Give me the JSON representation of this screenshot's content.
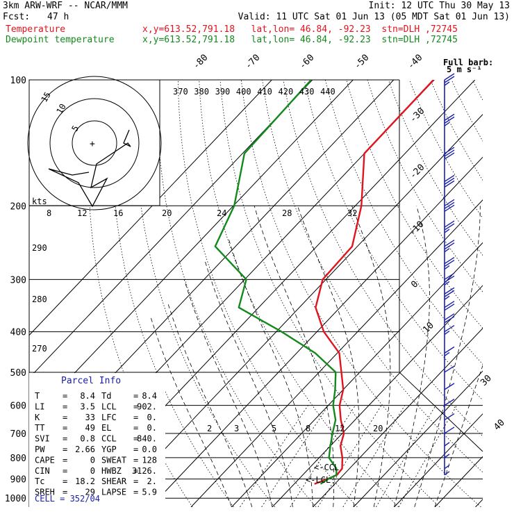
{
  "header": {
    "model": "3km ARW-WRF -- NCAR/MMM",
    "init": "Init: 12 UTC Thu 30 May 13",
    "fcst_label": "Fcst:",
    "fcst_value": "47 h",
    "valid": "Valid: 11 UTC Sat 01 Jun 13 (05 MDT Sat 01 Jun 13)",
    "temp_label": "Temperature",
    "temp_info": "x,y=613.52,791.18   lat,lon= 46.84, -92.23  stn=DLH ,72745",
    "dew_label": "Dewpoint temperature",
    "dew_info": "x,y=613.52,791.18   lat,lon= 46.84, -92.23  stn=DLH ,72745"
  },
  "barb_legend": {
    "line1": "Full barb:",
    "line2": "5 m s⁻¹"
  },
  "hodograph": {
    "units": "kts",
    "ring_labels": [
      "5",
      "10",
      "15"
    ]
  },
  "parcel_info": {
    "title": "Parcel Info",
    "left": [
      {
        "k": "T",
        "v": "8.4"
      },
      {
        "k": "LI",
        "v": "3.5"
      },
      {
        "k": "K",
        "v": "33"
      },
      {
        "k": "TT",
        "v": "49"
      },
      {
        "k": "SVI",
        "v": "0.8"
      },
      {
        "k": "PW",
        "v": "2.66"
      },
      {
        "k": "CAPE",
        "v": "0"
      },
      {
        "k": "CIN",
        "v": "0"
      },
      {
        "k": "Tc",
        "v": "18.2"
      },
      {
        "k": "SREH",
        "v": "29"
      }
    ],
    "right": [
      {
        "k": "Td",
        "v": "8.4"
      },
      {
        "k": "LCL",
        "v": "902."
      },
      {
        "k": "LFC",
        "v": "0."
      },
      {
        "k": "EL",
        "v": "0."
      },
      {
        "k": "CCL",
        "v": "840."
      },
      {
        "k": "YGP",
        "v": "0.0"
      },
      {
        "k": "SWEAT",
        "v": "128"
      },
      {
        "k": "HWBZ",
        "v": "3126."
      },
      {
        "k": "SHEAR",
        "v": "2."
      },
      {
        "k": "LAPSE",
        "v": "5.9"
      }
    ],
    "cell": "CELL = 352/04"
  },
  "annotations": {
    "ccl": "<-CCL",
    "lcl": "<-LCL"
  },
  "colors": {
    "temperature": "#e0141e",
    "dewpoint": "#12891c",
    "barbs": "#1a20a8",
    "grid": "#000000"
  },
  "chart_data": {
    "type": "line",
    "chart_kind": "skew-T log-p sounding",
    "y_axis": {
      "label": "",
      "scale": "log",
      "range": [
        1000,
        100
      ],
      "ticks": [
        100,
        200,
        300,
        400,
        500,
        600,
        700,
        800,
        900,
        1000
      ]
    },
    "isotherm_labels": [
      "-80",
      "-70",
      "-60",
      "-50",
      "-40",
      "-30",
      "-20",
      "-10",
      "0",
      "10",
      "30",
      "40"
    ],
    "theta_e_labels": [
      "370",
      "380",
      "390",
      "400",
      "410",
      "420",
      "430",
      "440"
    ],
    "theta_labels": [
      "290",
      "280",
      "270"
    ],
    "mixing_ratio_upper_labels": [
      "8",
      "12",
      "16",
      "20",
      "24",
      "28",
      "32"
    ],
    "mixing_ratio_lower_labels": [
      "2",
      "3",
      "5",
      "8",
      "12",
      "20"
    ],
    "series": [
      {
        "name": "Temperature",
        "color": "#e0141e",
        "points": [
          [
            100,
            -60.2
          ],
          [
            150,
            -60.0
          ],
          [
            200,
            -48.5
          ],
          [
            250,
            -41.3
          ],
          [
            300,
            -40.8
          ],
          [
            350,
            -36.0
          ],
          [
            400,
            -28.3
          ],
          [
            450,
            -19.5
          ],
          [
            500,
            -14.5
          ],
          [
            550,
            -10.0
          ],
          [
            600,
            -7.2
          ],
          [
            650,
            -3.5
          ],
          [
            700,
            0.4
          ],
          [
            750,
            2.5
          ],
          [
            800,
            5.7
          ],
          [
            850,
            8.2
          ],
          [
            880,
            8.4
          ],
          [
            900,
            7.0
          ],
          [
            925,
            5.0
          ]
        ]
      },
      {
        "name": "Dewpoint temperature",
        "color": "#12891c",
        "points": [
          [
            100,
            -90.3
          ],
          [
            150,
            -89.5
          ],
          [
            200,
            -79.8
          ],
          [
            250,
            -75.0
          ],
          [
            300,
            -59.6
          ],
          [
            350,
            -54.9
          ],
          [
            400,
            -38.7
          ],
          [
            450,
            -25.4
          ],
          [
            500,
            -15.9
          ],
          [
            550,
            -12.0
          ],
          [
            600,
            -8.8
          ],
          [
            650,
            -4.8
          ],
          [
            700,
            -2.4
          ],
          [
            750,
            0.0
          ],
          [
            800,
            2.4
          ],
          [
            850,
            6.8
          ],
          [
            880,
            8.3
          ],
          [
            900,
            7.2
          ],
          [
            925,
            6.5
          ]
        ]
      }
    ],
    "wind_barbs_m_s": [
      {
        "p": 100,
        "spd": 25
      },
      {
        "p": 125,
        "spd": 25
      },
      {
        "p": 150,
        "spd": 30
      },
      {
        "p": 175,
        "spd": 30
      },
      {
        "p": 200,
        "spd": 30
      },
      {
        "p": 225,
        "spd": 25
      },
      {
        "p": 250,
        "spd": 25
      },
      {
        "p": 275,
        "spd": 25
      },
      {
        "p": 300,
        "spd": 25
      },
      {
        "p": 325,
        "spd": 25
      },
      {
        "p": 350,
        "spd": 20
      },
      {
        "p": 375,
        "spd": 20
      },
      {
        "p": 400,
        "spd": 15
      },
      {
        "p": 450,
        "spd": 15
      },
      {
        "p": 500,
        "spd": 10
      },
      {
        "p": 550,
        "spd": 10
      },
      {
        "p": 600,
        "spd": 10
      },
      {
        "p": 650,
        "spd": 10
      },
      {
        "p": 700,
        "spd": 10
      },
      {
        "p": 750,
        "spd": 5
      },
      {
        "p": 800,
        "spd": 5
      },
      {
        "p": 850,
        "spd": 5
      },
      {
        "p": 880,
        "spd": 5
      }
    ]
  }
}
